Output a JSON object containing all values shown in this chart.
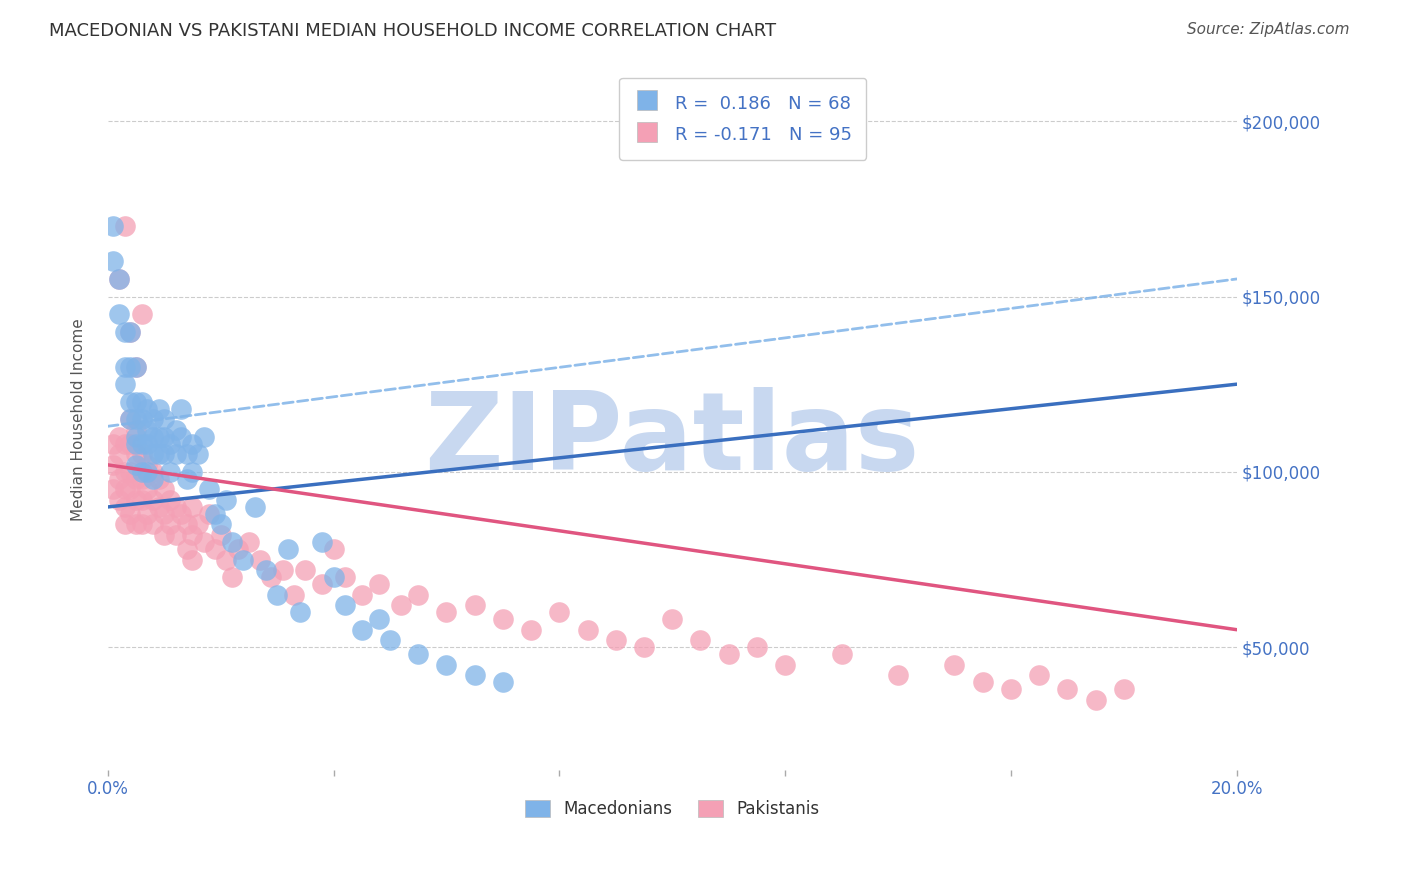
{
  "title": "MACEDONIAN VS PAKISTANI MEDIAN HOUSEHOLD INCOME CORRELATION CHART",
  "source": "Source: ZipAtlas.com",
  "ylabel": "Median Household Income",
  "y_ticks": [
    50000,
    100000,
    150000,
    200000
  ],
  "y_tick_labels": [
    "$50,000",
    "$100,000",
    "$150,000",
    "$200,000"
  ],
  "x_min": 0.0,
  "x_max": 0.2,
  "y_min": 15000,
  "y_max": 215000,
  "macedonian_color": "#7fb3e8",
  "pakistani_color": "#f4a0b5",
  "macedonian_line_color": "#3a6fbf",
  "pakistani_line_color": "#e05580",
  "dashed_line_color": "#7fb3e8",
  "R_macedonian": 0.186,
  "N_macedonian": 68,
  "R_pakistani": -0.171,
  "N_pakistani": 95,
  "legend_label_macedonian": "Macedonians",
  "legend_label_pakistani": "Pakistanis",
  "mac_line_x0": 0.0,
  "mac_line_x1": 0.2,
  "mac_line_y0": 90000,
  "mac_line_y1": 125000,
  "pak_line_x0": 0.0,
  "pak_line_x1": 0.2,
  "pak_line_y0": 102000,
  "pak_line_y1": 55000,
  "dash_line_x0": 0.0,
  "dash_line_x1": 0.2,
  "dash_line_y0": 113000,
  "dash_line_y1": 155000,
  "macedonian_x": [
    0.001,
    0.001,
    0.002,
    0.002,
    0.003,
    0.003,
    0.003,
    0.004,
    0.004,
    0.004,
    0.004,
    0.005,
    0.005,
    0.005,
    0.005,
    0.005,
    0.005,
    0.006,
    0.006,
    0.006,
    0.006,
    0.007,
    0.007,
    0.007,
    0.007,
    0.008,
    0.008,
    0.008,
    0.008,
    0.009,
    0.009,
    0.009,
    0.01,
    0.01,
    0.01,
    0.011,
    0.011,
    0.012,
    0.012,
    0.013,
    0.013,
    0.014,
    0.014,
    0.015,
    0.015,
    0.016,
    0.017,
    0.018,
    0.019,
    0.02,
    0.021,
    0.022,
    0.024,
    0.026,
    0.028,
    0.03,
    0.032,
    0.034,
    0.038,
    0.04,
    0.042,
    0.045,
    0.048,
    0.05,
    0.055,
    0.06,
    0.065,
    0.07
  ],
  "macedonian_y": [
    170000,
    160000,
    155000,
    145000,
    140000,
    130000,
    125000,
    140000,
    130000,
    120000,
    115000,
    130000,
    120000,
    115000,
    110000,
    108000,
    102000,
    120000,
    115000,
    108000,
    100000,
    118000,
    112000,
    108000,
    100000,
    115000,
    110000,
    105000,
    98000,
    118000,
    110000,
    105000,
    115000,
    110000,
    105000,
    108000,
    100000,
    112000,
    105000,
    118000,
    110000,
    105000,
    98000,
    108000,
    100000,
    105000,
    110000,
    95000,
    88000,
    85000,
    92000,
    80000,
    75000,
    90000,
    72000,
    65000,
    78000,
    60000,
    80000,
    70000,
    62000,
    55000,
    58000,
    52000,
    48000,
    45000,
    42000,
    40000
  ],
  "pakistani_x": [
    0.001,
    0.001,
    0.001,
    0.002,
    0.002,
    0.002,
    0.002,
    0.003,
    0.003,
    0.003,
    0.003,
    0.003,
    0.004,
    0.004,
    0.004,
    0.004,
    0.004,
    0.005,
    0.005,
    0.005,
    0.005,
    0.005,
    0.006,
    0.006,
    0.006,
    0.006,
    0.007,
    0.007,
    0.007,
    0.008,
    0.008,
    0.008,
    0.009,
    0.009,
    0.01,
    0.01,
    0.01,
    0.011,
    0.011,
    0.012,
    0.012,
    0.013,
    0.014,
    0.014,
    0.015,
    0.015,
    0.015,
    0.016,
    0.017,
    0.018,
    0.019,
    0.02,
    0.021,
    0.022,
    0.023,
    0.025,
    0.027,
    0.029,
    0.031,
    0.033,
    0.035,
    0.038,
    0.04,
    0.042,
    0.045,
    0.048,
    0.052,
    0.055,
    0.06,
    0.065,
    0.07,
    0.075,
    0.08,
    0.085,
    0.09,
    0.095,
    0.1,
    0.105,
    0.11,
    0.115,
    0.12,
    0.13,
    0.14,
    0.15,
    0.155,
    0.16,
    0.165,
    0.17,
    0.175,
    0.18,
    0.002,
    0.003,
    0.004,
    0.005,
    0.006
  ],
  "pakistani_y": [
    108000,
    102000,
    95000,
    110000,
    105000,
    98000,
    92000,
    108000,
    100000,
    95000,
    90000,
    85000,
    115000,
    108000,
    100000,
    95000,
    88000,
    112000,
    105000,
    98000,
    92000,
    85000,
    105000,
    98000,
    92000,
    85000,
    102000,
    95000,
    88000,
    100000,
    92000,
    85000,
    98000,
    90000,
    95000,
    88000,
    82000,
    92000,
    85000,
    90000,
    82000,
    88000,
    85000,
    78000,
    90000,
    82000,
    75000,
    85000,
    80000,
    88000,
    78000,
    82000,
    75000,
    70000,
    78000,
    80000,
    75000,
    70000,
    72000,
    65000,
    72000,
    68000,
    78000,
    70000,
    65000,
    68000,
    62000,
    65000,
    60000,
    62000,
    58000,
    55000,
    60000,
    55000,
    52000,
    50000,
    58000,
    52000,
    48000,
    50000,
    45000,
    48000,
    42000,
    45000,
    40000,
    38000,
    42000,
    38000,
    35000,
    38000,
    155000,
    170000,
    140000,
    130000,
    145000
  ],
  "background_color": "#ffffff",
  "grid_color": "#cccccc",
  "tick_label_color": "#4472c4",
  "title_color": "#333333",
  "watermark_color": "#c8d8f0",
  "watermark_text": "ZIPatlas",
  "legend_border_color": "#cccccc"
}
